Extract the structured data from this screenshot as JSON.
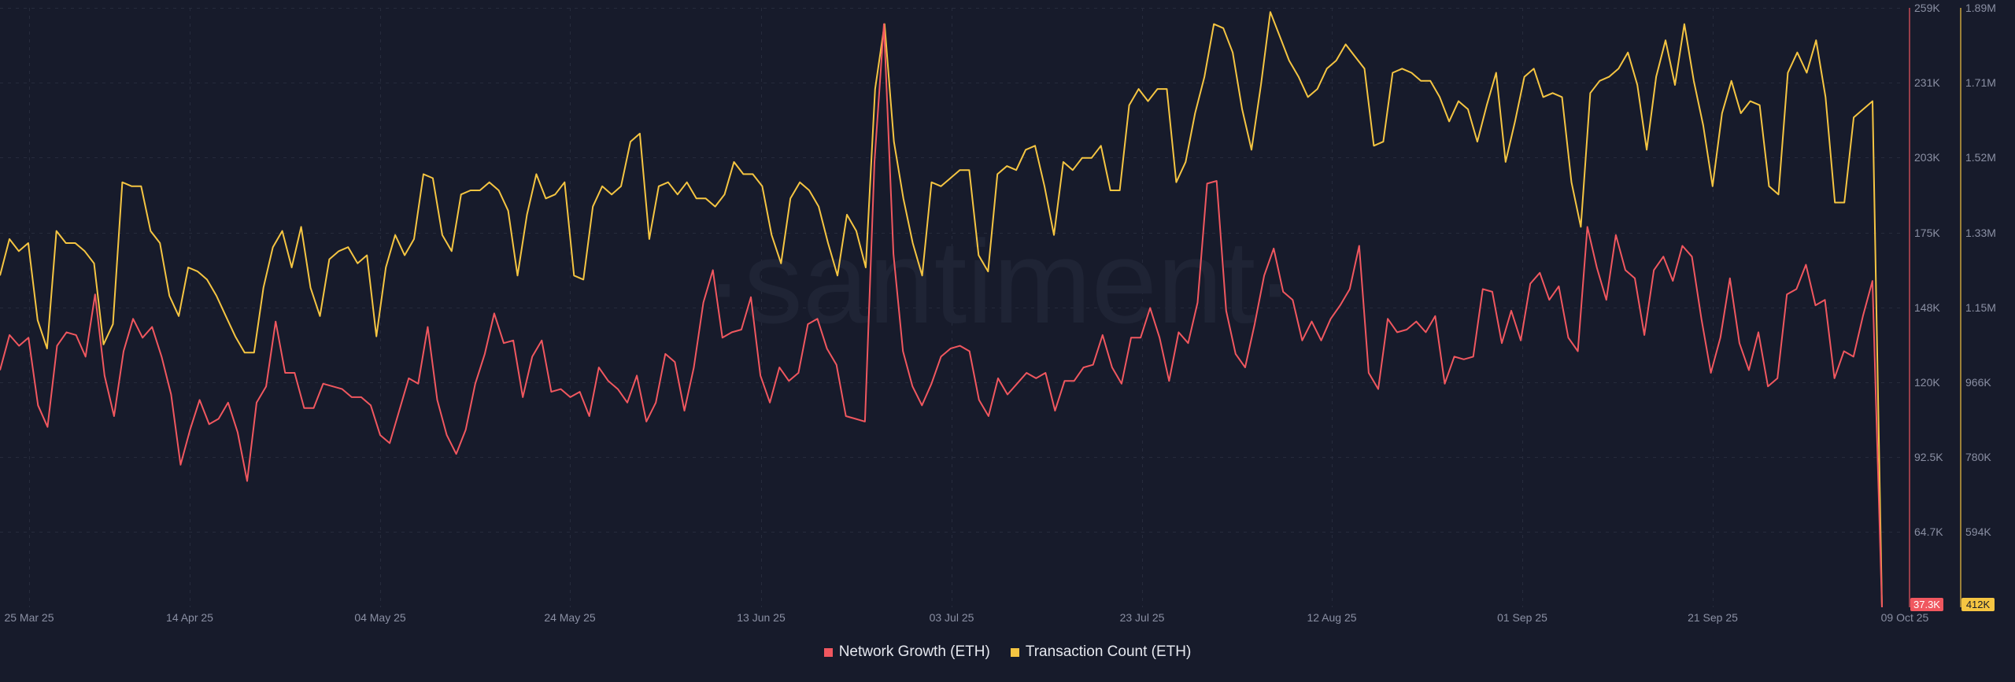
{
  "watermark": "·santiment·",
  "colors": {
    "background": "#171b2b",
    "network_growth": "#f0575f",
    "transaction_count": "#f5c542",
    "axis_text": "#8a8fa3",
    "grid": "#262b3c"
  },
  "chart_data": {
    "type": "line",
    "x_tick_labels": [
      "25 Mar 25",
      "14 Apr 25",
      "04 May 25",
      "24 May 25",
      "13 Jun 25",
      "03 Jul 25",
      "23 Jul 25",
      "12 Aug 25",
      "01 Sep 25",
      "21 Sep 25",
      "09 Oct 25"
    ],
    "x_range": [
      "2025-03-25",
      "2025-10-09"
    ],
    "grid": true,
    "legend_position": "bottom-center",
    "axes": {
      "network_growth": {
        "side": "right-inner",
        "range": [
          37300,
          259000
        ],
        "tick_labels": [
          "259K",
          "231K",
          "203K",
          "175K",
          "148K",
          "120K",
          "92.5K",
          "64.7K"
        ],
        "last_value_badge": "37.3K"
      },
      "transaction_count": {
        "side": "right-outer",
        "range": [
          412000,
          1890000
        ],
        "tick_labels": [
          "1.89M",
          "1.71M",
          "1.52M",
          "1.33M",
          "1.15M",
          "966K",
          "780K",
          "594K"
        ],
        "last_value_badge": "412K"
      }
    },
    "series": [
      {
        "name": "Network Growth (ETH)",
        "axis": "network_growth",
        "values": [
          125000,
          138000,
          134000,
          137000,
          112000,
          104000,
          134000,
          139000,
          138000,
          130000,
          153000,
          123000,
          108000,
          132000,
          144000,
          137000,
          141000,
          130000,
          116000,
          90000,
          103000,
          114000,
          105000,
          107000,
          113000,
          102000,
          84000,
          113000,
          119000,
          143000,
          124000,
          124000,
          111000,
          111000,
          120000,
          119000,
          118000,
          115000,
          115000,
          112000,
          101000,
          98000,
          110000,
          122000,
          120000,
          141000,
          114000,
          101000,
          94000,
          103000,
          120000,
          131000,
          146000,
          135000,
          136000,
          115000,
          130000,
          136000,
          117000,
          118000,
          115000,
          117000,
          108000,
          126000,
          121000,
          118000,
          113000,
          123000,
          106000,
          113000,
          131000,
          128000,
          110000,
          126000,
          150000,
          162000,
          137000,
          139000,
          140000,
          152000,
          123000,
          113000,
          126000,
          121000,
          124000,
          142000,
          144000,
          133000,
          127000,
          108000,
          107000,
          106000,
          202000,
          253000,
          168000,
          132000,
          119000,
          112000,
          120000,
          130000,
          133000,
          134000,
          132000,
          114000,
          108000,
          122000,
          116000,
          120000,
          124000,
          122000,
          124000,
          110000,
          121000,
          121000,
          126000,
          127000,
          138000,
          126000,
          120000,
          137000,
          137000,
          148000,
          137000,
          121000,
          139000,
          135000,
          150000,
          194000,
          195000,
          147000,
          131000,
          126000,
          142000,
          160000,
          170000,
          154000,
          151000,
          136000,
          143000,
          136000,
          144000,
          149000,
          155000,
          171000,
          124000,
          118000,
          144000,
          139000,
          140000,
          143000,
          139000,
          145000,
          120000,
          130000,
          129000,
          130000,
          155000,
          154000,
          135000,
          147000,
          136000,
          157000,
          161000,
          151000,
          156000,
          137000,
          132000,
          178000,
          163000,
          151000,
          175000,
          162000,
          159000,
          138000,
          162000,
          167000,
          158000,
          171000,
          167000,
          144000,
          124000,
          137000,
          159000,
          135000,
          125000,
          139000,
          119000,
          122000,
          153000,
          155000,
          164000,
          149000,
          151000,
          122000,
          132000,
          130000,
          145000,
          158000,
          37300
        ]
      },
      {
        "name": "Transaction Count (ETH)",
        "axis": "transaction_count",
        "values": [
          1230000,
          1320000,
          1290000,
          1310000,
          1120000,
          1050000,
          1340000,
          1310000,
          1310000,
          1290000,
          1260000,
          1060000,
          1110000,
          1460000,
          1450000,
          1450000,
          1340000,
          1310000,
          1180000,
          1130000,
          1250000,
          1240000,
          1220000,
          1180000,
          1130000,
          1080000,
          1040000,
          1040000,
          1200000,
          1300000,
          1340000,
          1250000,
          1350000,
          1200000,
          1130000,
          1270000,
          1290000,
          1300000,
          1260000,
          1280000,
          1080000,
          1250000,
          1330000,
          1280000,
          1320000,
          1480000,
          1470000,
          1330000,
          1290000,
          1430000,
          1440000,
          1440000,
          1460000,
          1440000,
          1390000,
          1230000,
          1380000,
          1480000,
          1420000,
          1430000,
          1460000,
          1230000,
          1220000,
          1400000,
          1450000,
          1430000,
          1450000,
          1560000,
          1580000,
          1320000,
          1450000,
          1460000,
          1430000,
          1460000,
          1420000,
          1420000,
          1400000,
          1430000,
          1510000,
          1480000,
          1480000,
          1450000,
          1330000,
          1260000,
          1420000,
          1460000,
          1440000,
          1400000,
          1310000,
          1230000,
          1380000,
          1340000,
          1250000,
          1690000,
          1850000,
          1560000,
          1420000,
          1310000,
          1230000,
          1460000,
          1450000,
          1470000,
          1490000,
          1490000,
          1280000,
          1240000,
          1480000,
          1500000,
          1490000,
          1540000,
          1550000,
          1450000,
          1330000,
          1510000,
          1490000,
          1520000,
          1520000,
          1550000,
          1440000,
          1440000,
          1650000,
          1690000,
          1660000,
          1690000,
          1690000,
          1460000,
          1510000,
          1630000,
          1720000,
          1850000,
          1840000,
          1780000,
          1640000,
          1540000,
          1700000,
          1880000,
          1820000,
          1760000,
          1720000,
          1670000,
          1690000,
          1740000,
          1760000,
          1800000,
          1770000,
          1740000,
          1550000,
          1560000,
          1730000,
          1740000,
          1730000,
          1710000,
          1710000,
          1670000,
          1610000,
          1660000,
          1640000,
          1560000,
          1650000,
          1730000,
          1510000,
          1610000,
          1720000,
          1740000,
          1670000,
          1680000,
          1670000,
          1460000,
          1350000,
          1680000,
          1710000,
          1720000,
          1740000,
          1780000,
          1700000,
          1540000,
          1720000,
          1810000,
          1700000,
          1850000,
          1710000,
          1600000,
          1450000,
          1630000,
          1710000,
          1630000,
          1660000,
          1650000,
          1450000,
          1430000,
          1730000,
          1780000,
          1730000,
          1810000,
          1670000,
          1410000,
          1410000,
          1620000,
          1640000,
          1660000,
          412000
        ]
      }
    ]
  },
  "legend": {
    "items": [
      {
        "label": "Network Growth (ETH)",
        "color": "#f0575f"
      },
      {
        "label": "Transaction Count (ETH)",
        "color": "#f5c542"
      }
    ]
  }
}
